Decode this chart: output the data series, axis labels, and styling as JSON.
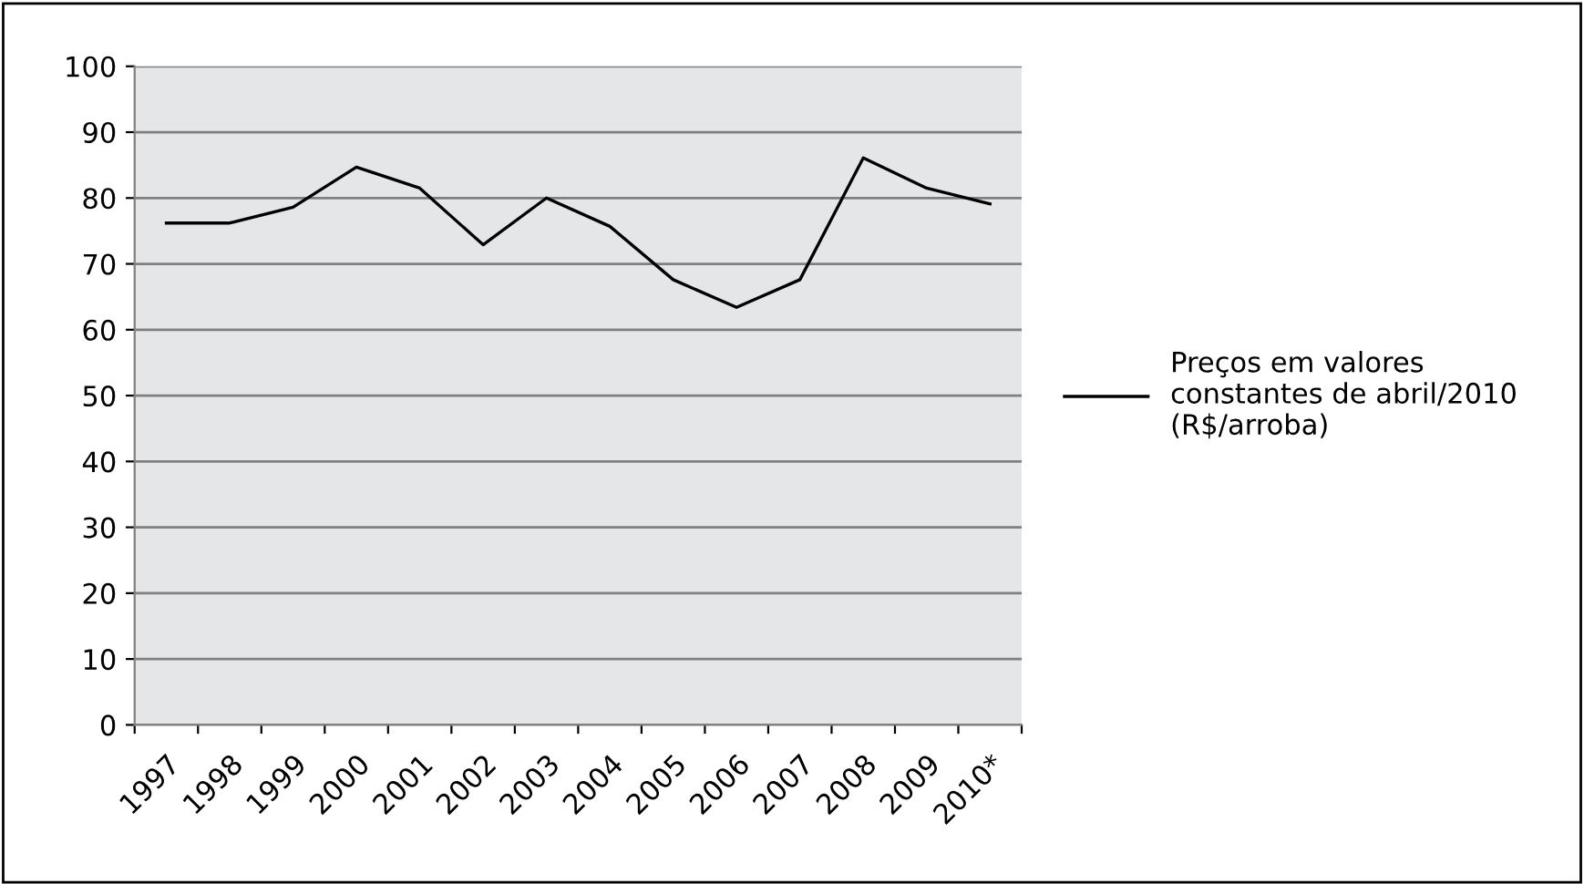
{
  "chart_data": {
    "type": "line",
    "categories": [
      "1997",
      "1998",
      "1999",
      "2000",
      "2001",
      "2002",
      "2003",
      "2004",
      "2005",
      "2006",
      "2007",
      "2008",
      "2009",
      "2010*"
    ],
    "series": [
      {
        "name": "Preços em valores constantes de abril/2010 (R$/arroba)",
        "color": "#000000",
        "values": [
          76.2,
          76.2,
          78.6,
          84.7,
          81.5,
          72.9,
          80.0,
          75.7,
          67.6,
          63.4,
          67.6,
          86.1,
          81.5,
          79.1
        ]
      }
    ],
    "ylim": [
      0,
      100
    ],
    "yticks": [
      0,
      10,
      20,
      30,
      40,
      50,
      60,
      70,
      80,
      90,
      100
    ],
    "grid": "y",
    "legend": "right",
    "marker": "none",
    "line_style": "solid"
  }
}
